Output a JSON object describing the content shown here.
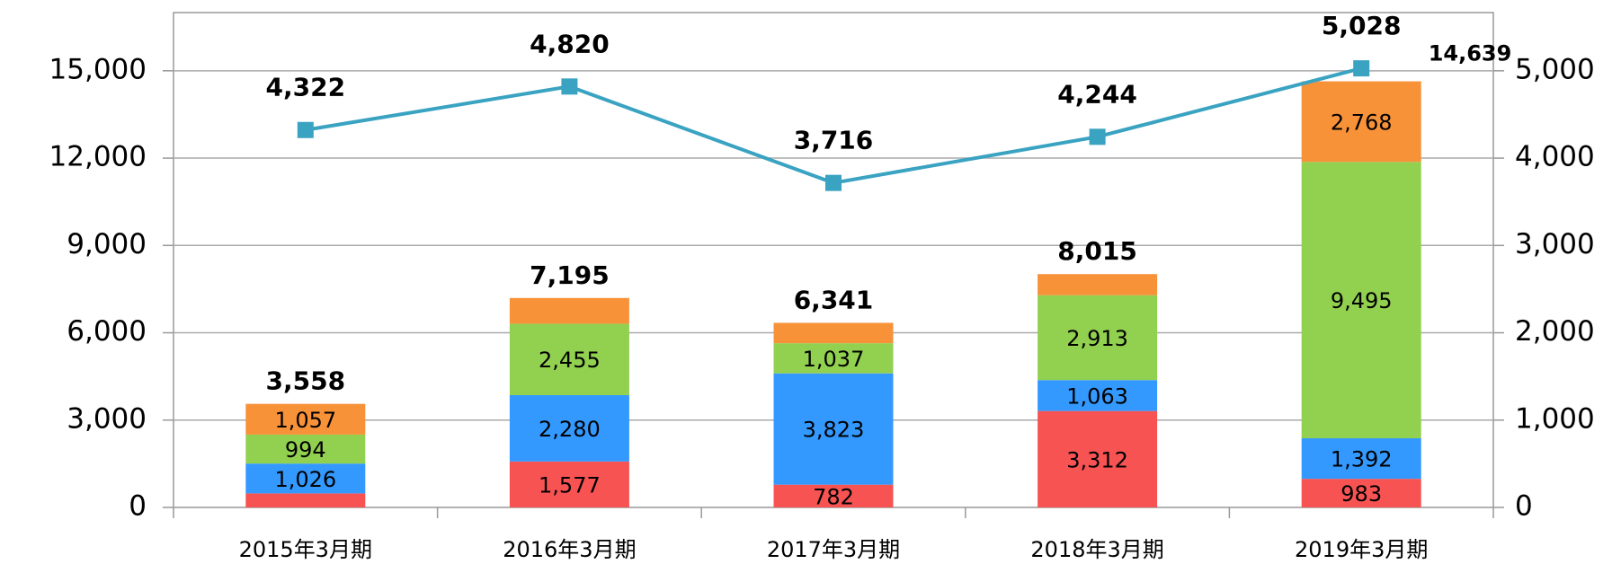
{
  "chart_data": {
    "type": "bar",
    "categories": [
      "2015年3月期",
      "2016年3月期",
      "2017年3月期",
      "2018年3月期",
      "2019年3月期"
    ],
    "series": [
      {
        "color": "#f75353",
        "values": [
          481,
          1577,
          782,
          3312,
          983
        ],
        "value_labels": [
          null,
          "1,577",
          "782",
          "3,312",
          "983"
        ]
      },
      {
        "color": "#3399ff",
        "values": [
          1026,
          2280,
          3823,
          1063,
          1392
        ],
        "value_labels": [
          "1,026",
          "2,280",
          "3,823",
          "1,063",
          "1,392"
        ]
      },
      {
        "color": "#92d050",
        "values": [
          994,
          2455,
          1037,
          2913,
          9495
        ],
        "value_labels": [
          "994",
          "2,455",
          "1,037",
          "2,913",
          "9,495"
        ]
      },
      {
        "color": "#f79239",
        "values": [
          1057,
          883,
          699,
          727,
          2768
        ],
        "value_labels": [
          "1,057",
          null,
          null,
          null,
          "2,768"
        ]
      }
    ],
    "totals": [
      3558,
      7195,
      6341,
      8015,
      14639
    ],
    "total_labels": [
      "3,558",
      "7,195",
      "6,341",
      "8,015",
      "14,639"
    ],
    "line": {
      "type": "line",
      "axis": "y2",
      "color": "#3aa3c2",
      "values": [
        4322,
        4820,
        3716,
        4244,
        5028
      ],
      "value_labels": [
        "4,322",
        "4,820",
        "3,716",
        "4,244",
        "5,028"
      ]
    },
    "ylim": [
      0,
      17000
    ],
    "yticks": [
      0,
      {
        "value": 3000,
        "label": "3,000"
      },
      {
        "value": 6000,
        "label": "6,000"
      },
      {
        "value": 9000,
        "label": "9,000"
      },
      {
        "value": 12000,
        "label": "12,000"
      },
      {
        "value": 15000,
        "label": "15,000"
      }
    ],
    "y2lim": [
      0,
      5666.67
    ],
    "y2ticks": [
      0,
      {
        "value": 1000,
        "label": "1,000"
      },
      {
        "value": 2000,
        "label": "2,000"
      },
      {
        "value": 3000,
        "label": "3,000"
      },
      {
        "value": 4000,
        "label": "4,000"
      },
      {
        "value": 5000,
        "label": "5,000"
      }
    ],
    "grid": true
  }
}
